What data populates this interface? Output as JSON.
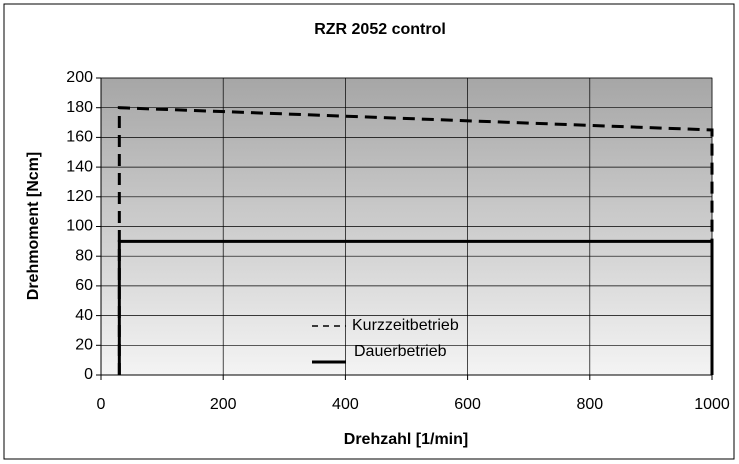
{
  "chart_data": {
    "type": "line",
    "title": "RZR 2052 control",
    "x_label": "Drehzahl [1/min]",
    "y_label": "Drehmoment [Ncm]",
    "x": [
      30,
      30,
      1000,
      1000
    ],
    "series": [
      {
        "name": "Kurzzeitbetrieb",
        "color": "#000000",
        "dash": true,
        "values": [
          0,
          180,
          165,
          0
        ]
      },
      {
        "name": "Dauerbetrieb",
        "color": "#000000",
        "dash": false,
        "values": [
          0,
          90,
          90,
          0
        ]
      }
    ],
    "xlim": [
      0,
      1000
    ],
    "xticks": [
      0,
      200,
      400,
      600,
      800,
      1000
    ],
    "ylim": [
      0,
      200
    ],
    "yticks": [
      0,
      20,
      40,
      60,
      80,
      100,
      120,
      140,
      160,
      180,
      200
    ],
    "grid": true
  }
}
